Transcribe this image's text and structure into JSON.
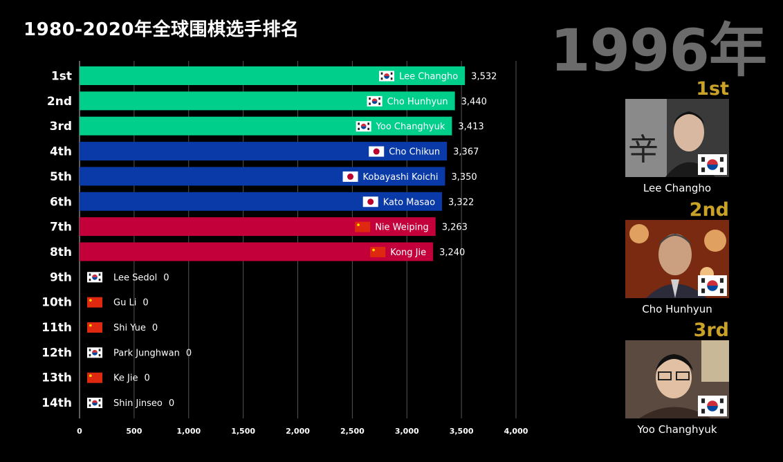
{
  "header": {
    "title": "1980-2020年全球围棋选手排名",
    "year": "1996年"
  },
  "colors": {
    "korea_bar": "#00cf8b",
    "japan_bar": "#0a3aa8",
    "china_bar": "#c4003a",
    "podium_rank": "#c9a227",
    "year_text": "#6b6b6b"
  },
  "chart_data": {
    "type": "bar",
    "orientation": "horizontal",
    "xlim": [
      0,
      4000
    ],
    "x_ticks": [
      "0",
      "500",
      "1,000",
      "1,500",
      "2,000",
      "2,500",
      "3,000",
      "3,500",
      "4,000"
    ],
    "grid": true,
    "rows": [
      {
        "rank": "1st",
        "name": "Lee Changho",
        "country": "korea",
        "value": 3532,
        "value_label": "3,532"
      },
      {
        "rank": "2nd",
        "name": "Cho Hunhyun",
        "country": "korea",
        "value": 3440,
        "value_label": "3,440"
      },
      {
        "rank": "3rd",
        "name": "Yoo Changhyuk",
        "country": "korea",
        "value": 3413,
        "value_label": "3,413"
      },
      {
        "rank": "4th",
        "name": "Cho Chikun",
        "country": "japan",
        "value": 3367,
        "value_label": "3,367"
      },
      {
        "rank": "5th",
        "name": "Kobayashi Koichi",
        "country": "japan",
        "value": 3350,
        "value_label": "3,350"
      },
      {
        "rank": "6th",
        "name": "Kato Masao",
        "country": "japan",
        "value": 3322,
        "value_label": "3,322"
      },
      {
        "rank": "7th",
        "name": "Nie Weiping",
        "country": "china",
        "value": 3263,
        "value_label": "3,263"
      },
      {
        "rank": "8th",
        "name": "Kong Jie",
        "country": "china",
        "value": 3240,
        "value_label": "3,240"
      },
      {
        "rank": "9th",
        "name": "Lee Sedol",
        "country": "korea",
        "value": 0,
        "value_label": "0"
      },
      {
        "rank": "10th",
        "name": "Gu Li",
        "country": "china",
        "value": 0,
        "value_label": "0"
      },
      {
        "rank": "11th",
        "name": "Shi Yue",
        "country": "china",
        "value": 0,
        "value_label": "0"
      },
      {
        "rank": "12th",
        "name": "Park Junghwan",
        "country": "korea",
        "value": 0,
        "value_label": "0"
      },
      {
        "rank": "13th",
        "name": "Ke Jie",
        "country": "china",
        "value": 0,
        "value_label": "0"
      },
      {
        "rank": "14th",
        "name": "Shin Jinseo",
        "country": "korea",
        "value": 0,
        "value_label": "0"
      }
    ]
  },
  "podium": [
    {
      "rank": "1st",
      "name": "Lee Changho",
      "country": "korea"
    },
    {
      "rank": "2nd",
      "name": "Cho Hunhyun",
      "country": "korea"
    },
    {
      "rank": "3rd",
      "name": "Yoo Changhyuk",
      "country": "korea"
    }
  ]
}
